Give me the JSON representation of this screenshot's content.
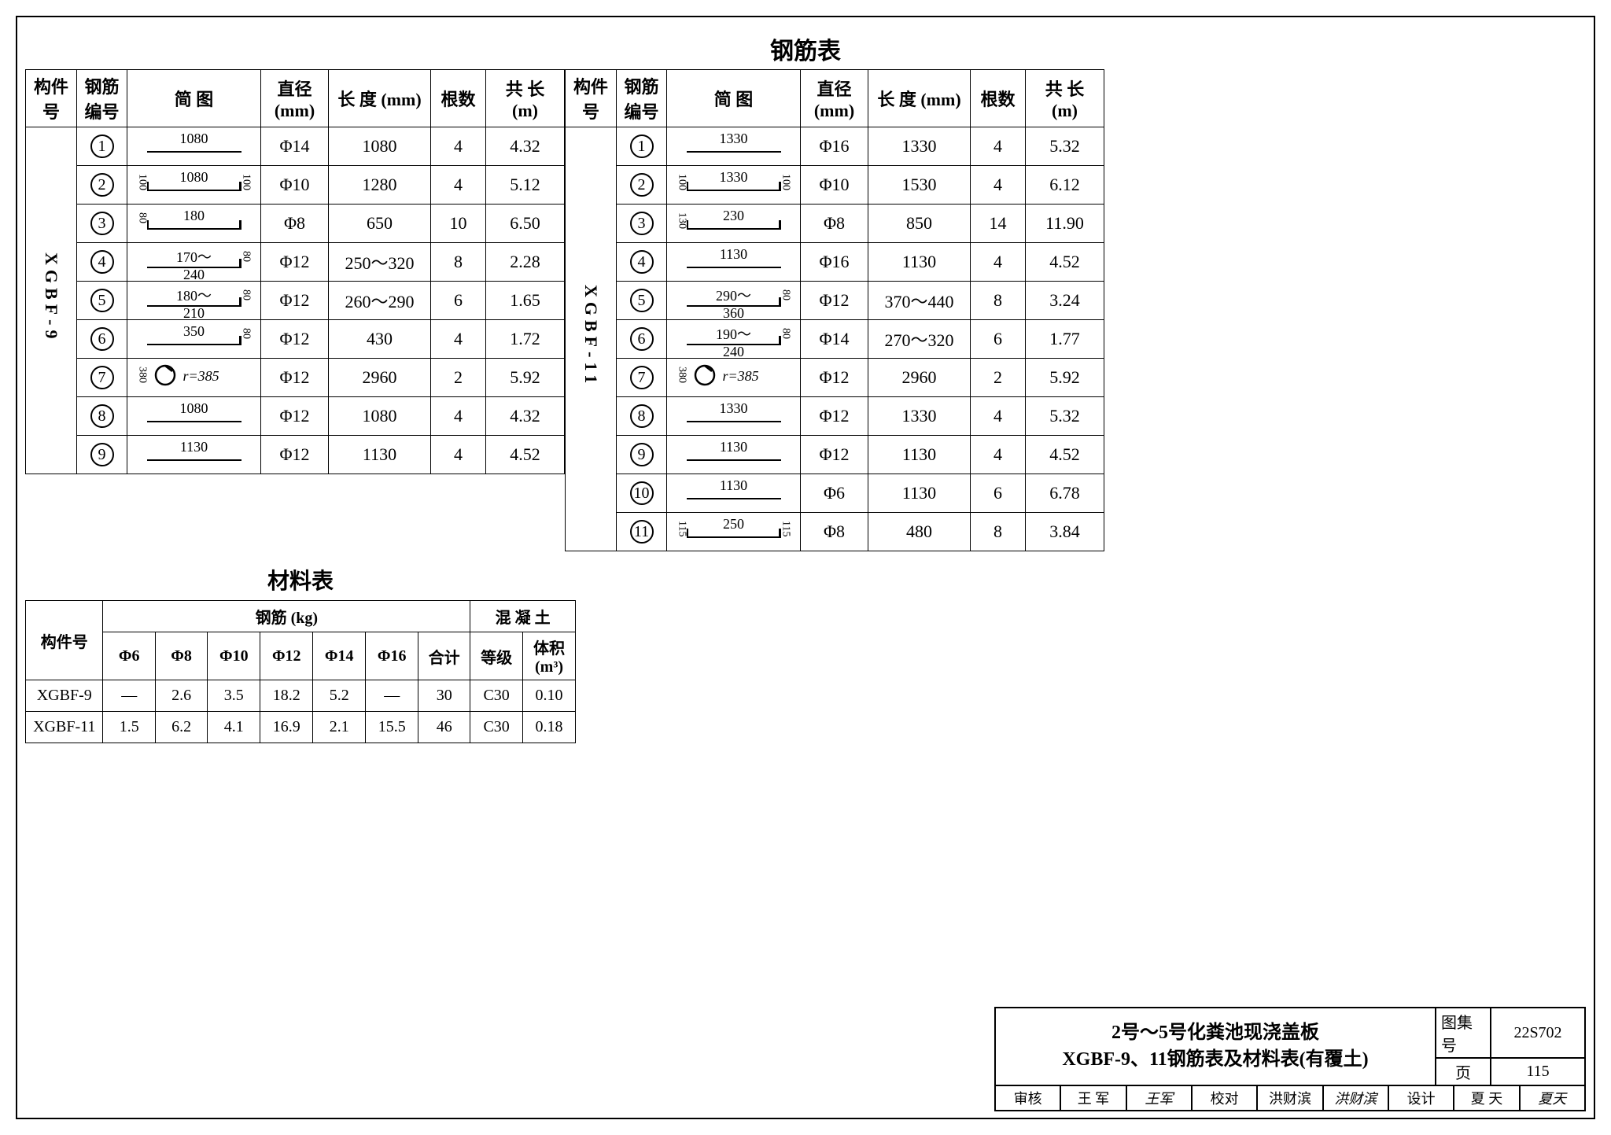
{
  "title": "钢筋表",
  "headers": {
    "component": "构件号",
    "rebar_no": "钢筋\n编号",
    "diagram": "简    图",
    "diameter": "直径\n(mm)",
    "length": "长 度\n(mm)",
    "qty": "根数",
    "total": "共 长\n(m)"
  },
  "left": {
    "component": "XGBF-9",
    "rows": [
      {
        "n": "1",
        "dia": "1080",
        "d": "Φ14",
        "len": "1080",
        "qty": "4",
        "tot": "4.32",
        "shape": "straight"
      },
      {
        "n": "2",
        "dia": "1080",
        "d": "Φ10",
        "len": "1280",
        "qty": "4",
        "tot": "5.12",
        "shape": "two-hook",
        "s1": "100",
        "s2": "100"
      },
      {
        "n": "3",
        "dia": "180",
        "d": "Φ8",
        "len": "650",
        "qty": "10",
        "tot": "6.50",
        "shape": "box",
        "s1": "80"
      },
      {
        "n": "4",
        "dia": "170～240",
        "d": "Φ12",
        "len": "250～320",
        "qty": "8",
        "tot": "2.28",
        "shape": "l-right",
        "s2": "80"
      },
      {
        "n": "5",
        "dia": "180～210",
        "d": "Φ12",
        "len": "260～290",
        "qty": "6",
        "tot": "1.65",
        "shape": "l-right",
        "s2": "80"
      },
      {
        "n": "6",
        "dia": "350",
        "d": "Φ12",
        "len": "430",
        "qty": "4",
        "tot": "1.72",
        "shape": "l-right",
        "s2": "80"
      },
      {
        "n": "7",
        "dia": "r=385",
        "d": "Φ12",
        "len": "2960",
        "qty": "2",
        "tot": "5.92",
        "shape": "circle",
        "s1": "380"
      },
      {
        "n": "8",
        "dia": "1080",
        "d": "Φ12",
        "len": "1080",
        "qty": "4",
        "tot": "4.32",
        "shape": "straight"
      },
      {
        "n": "9",
        "dia": "1130",
        "d": "Φ12",
        "len": "1130",
        "qty": "4",
        "tot": "4.52",
        "shape": "straight"
      }
    ]
  },
  "right": {
    "component": "XGBF-11",
    "rows": [
      {
        "n": "1",
        "dia": "1330",
        "d": "Φ16",
        "len": "1330",
        "qty": "4",
        "tot": "5.32",
        "shape": "straight"
      },
      {
        "n": "2",
        "dia": "1330",
        "d": "Φ10",
        "len": "1530",
        "qty": "4",
        "tot": "6.12",
        "shape": "two-hook",
        "s1": "100",
        "s2": "100"
      },
      {
        "n": "3",
        "dia": "230",
        "d": "Φ8",
        "len": "850",
        "qty": "14",
        "tot": "11.90",
        "shape": "box",
        "s1": "130"
      },
      {
        "n": "4",
        "dia": "1130",
        "d": "Φ16",
        "len": "1130",
        "qty": "4",
        "tot": "4.52",
        "shape": "straight"
      },
      {
        "n": "5",
        "dia": "290～360",
        "d": "Φ12",
        "len": "370～440",
        "qty": "8",
        "tot": "3.24",
        "shape": "l-right",
        "s2": "80"
      },
      {
        "n": "6",
        "dia": "190～240",
        "d": "Φ14",
        "len": "270～320",
        "qty": "6",
        "tot": "1.77",
        "shape": "l-right",
        "s2": "80"
      },
      {
        "n": "7",
        "dia": "r=385",
        "d": "Φ12",
        "len": "2960",
        "qty": "2",
        "tot": "5.92",
        "shape": "circle",
        "s1": "380"
      },
      {
        "n": "8",
        "dia": "1330",
        "d": "Φ12",
        "len": "1330",
        "qty": "4",
        "tot": "5.32",
        "shape": "straight"
      },
      {
        "n": "9",
        "dia": "1130",
        "d": "Φ12",
        "len": "1130",
        "qty": "4",
        "tot": "4.52",
        "shape": "straight"
      },
      {
        "n": "10",
        "dia": "1130",
        "d": "Φ6",
        "len": "1130",
        "qty": "6",
        "tot": "6.78",
        "shape": "straight"
      },
      {
        "n": "11",
        "dia": "250",
        "d": "Φ8",
        "len": "480",
        "qty": "8",
        "tot": "3.84",
        "shape": "u",
        "s1": "115",
        "s2": "115"
      }
    ]
  },
  "materials": {
    "title": "材料表",
    "h1": "构件号",
    "h2": "钢筋 (kg)",
    "h3": "混 凝 土",
    "cols": [
      "Φ6",
      "Φ8",
      "Φ10",
      "Φ12",
      "Φ14",
      "Φ16",
      "合计",
      "等级",
      "体积(m³)"
    ],
    "rows": [
      {
        "name": "XGBF-9",
        "v": [
          "—",
          "2.6",
          "3.5",
          "18.2",
          "5.2",
          "—",
          "30",
          "C30",
          "0.10"
        ]
      },
      {
        "name": "XGBF-11",
        "v": [
          "1.5",
          "6.2",
          "4.1",
          "16.9",
          "2.1",
          "15.5",
          "46",
          "C30",
          "0.18"
        ]
      }
    ]
  },
  "titleblock": {
    "line1": "2号～5号化粪池现浇盖板",
    "line2": "XGBF-9、11钢筋表及材料表(有覆土)",
    "set_label": "图集号",
    "set_no": "22S702",
    "page_label": "页",
    "page_no": "115",
    "sig": {
      "review_l": "审核",
      "review_n": "王 军",
      "review_s": "王军",
      "check_l": "校对",
      "check_n": "洪财滨",
      "check_s": "洪财滨",
      "design_l": "设计",
      "design_n": "夏 天",
      "design_s": "夏天"
    }
  }
}
